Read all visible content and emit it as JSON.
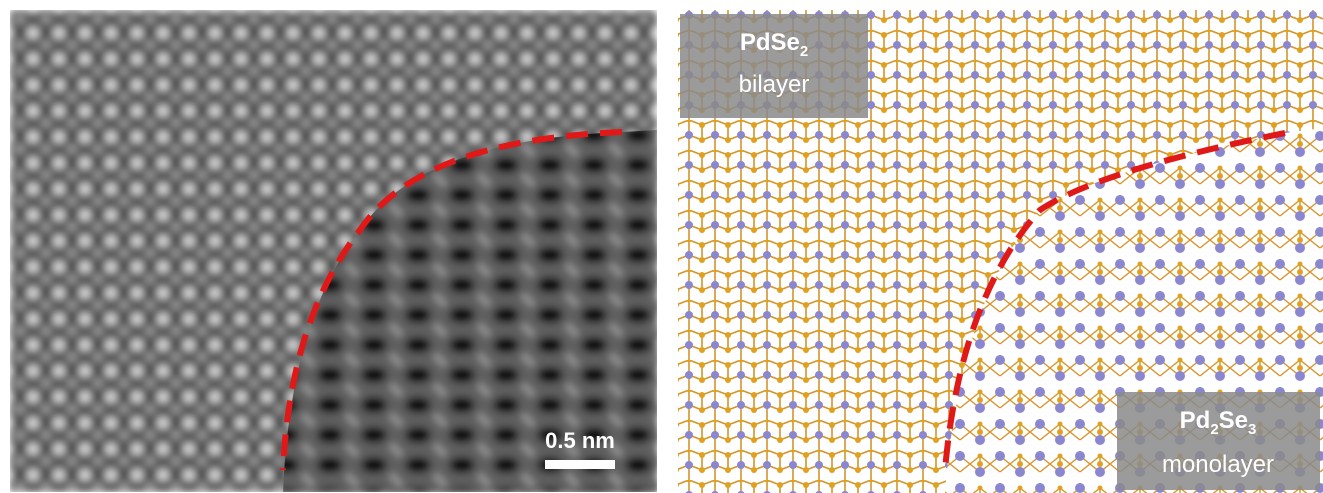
{
  "left_panel": {
    "scale_bar": "0.5 nm"
  },
  "right_panel": {
    "top_label": {
      "formula": [
        "PdSe",
        "2"
      ],
      "phase": "bilayer"
    },
    "bottom_label": {
      "formula": [
        "Pd",
        "2",
        "Se",
        "3"
      ],
      "phase": "monolayer"
    }
  }
}
